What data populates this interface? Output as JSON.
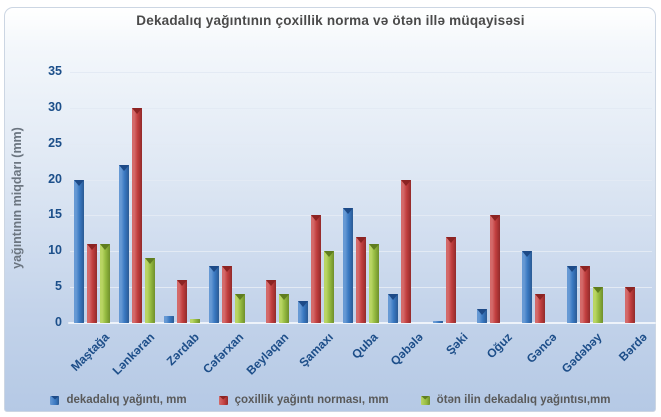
{
  "chart_data": {
    "type": "bar",
    "title": "Dekadalıq yağıntının çoxillik norma  və ötən illə müqayisəsi",
    "ylabel": "yağıntının miqdarı (mm)",
    "xlabel": "",
    "ylim": [
      0,
      35
    ],
    "yticks": [
      0,
      5,
      10,
      15,
      20,
      25,
      30,
      35
    ],
    "grid": true,
    "legend_position": "bottom",
    "categories": [
      "Maştağa",
      "Lənkəran",
      "Zərdab",
      "Cəfərxan",
      "Beyləqan",
      "Şamaxı",
      "Quba",
      "Qəbələ",
      "Şəki",
      "Oğuz",
      "Gəncə",
      "Gədəbəy",
      "Bərdə"
    ],
    "series": [
      {
        "name": "dekadalıq yağıntı, mm",
        "color": "#3a79c2",
        "color_light": "#6699d4",
        "color_dark": "#2a5a94",
        "color_cap": "#1d4a87",
        "values": [
          20,
          22,
          1,
          8,
          0,
          3,
          16,
          4,
          0.3,
          2,
          10,
          8,
          0
        ]
      },
      {
        "name": "çoxillik yağıntı norması, mm",
        "color": "#c23f3f",
        "color_light": "#d46a6a",
        "color_dark": "#922a2a",
        "color_cap": "#8c2322",
        "values": [
          11,
          30,
          6,
          8,
          6,
          15,
          12,
          20,
          12,
          15,
          4,
          8,
          5
        ]
      },
      {
        "name": "ötən ilin dekadalıq yağıntısı,mm",
        "color": "#96bb41",
        "color_light": "#b9d563",
        "color_dark": "#6f8f2b",
        "color_cap": "#5f7d1f",
        "values": [
          11,
          9,
          0.5,
          4,
          4,
          10,
          11,
          0,
          0,
          0,
          0,
          5,
          0
        ]
      }
    ]
  },
  "styles": {
    "title_color": "#4a4a4a",
    "tick_label_color": "#1c4f8a",
    "category_label_color": "#1d4e89",
    "legend_text_color": "#595959",
    "gridline_color": "#e3eaf4",
    "axis_line_color": "#eef3fa",
    "background_top": "#ffffff",
    "background_bottom": "#b5c9e5"
  }
}
